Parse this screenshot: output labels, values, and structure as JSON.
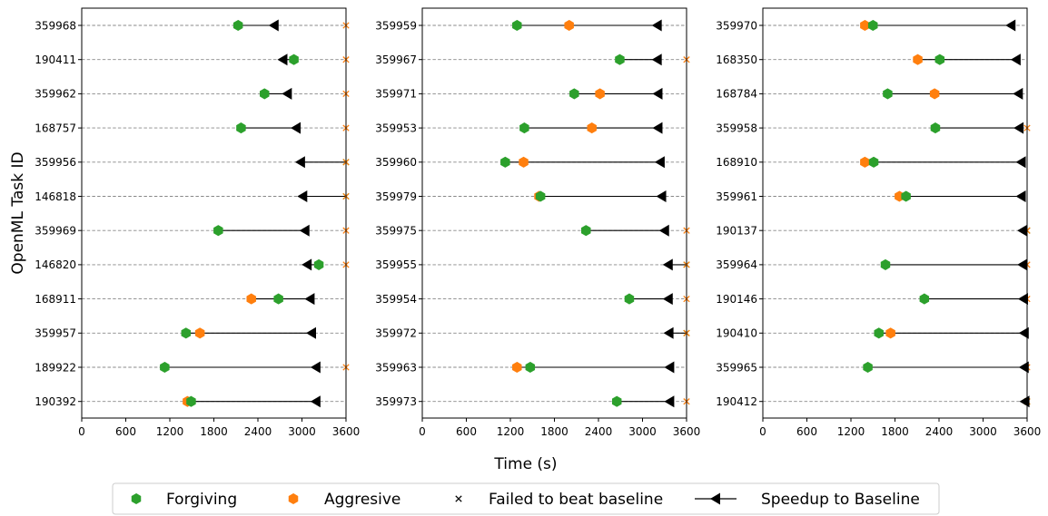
{
  "figure": {
    "ylabel": "OpenML Task ID",
    "xlabel": "Time (s)"
  },
  "legend": {
    "placement": "bottom-center",
    "items": [
      {
        "label": "Forgiving",
        "marker": "hexagon",
        "color": "#2ca02c"
      },
      {
        "label": "Aggresive",
        "marker": "hexagon",
        "color": "#ff7f0e"
      },
      {
        "label": "Failed to beat baseline",
        "marker": "x",
        "color": "#000000"
      },
      {
        "label": "Speedup to Baseline",
        "marker": "line-left-triangle",
        "color": "#000000"
      }
    ]
  },
  "colors": {
    "forgiving": "#2ca02c",
    "aggressive": "#ff7f0e",
    "failed_x": "#ff7f0e",
    "grid": "#888888"
  },
  "chart_data": [
    {
      "type": "dot-arrow",
      "xlim": [
        0,
        3600
      ],
      "xticks": [
        0,
        600,
        1200,
        1800,
        2400,
        3000,
        3600
      ],
      "rows": [
        {
          "task": "359968",
          "forgiving": 2130,
          "aggressive": null,
          "baseline": 2620,
          "forgiving_failed": false,
          "aggressive_failed": true
        },
        {
          "task": "190411",
          "forgiving": 2890,
          "aggressive": null,
          "baseline": 2740,
          "forgiving_failed": false,
          "aggressive_failed": true
        },
        {
          "task": "359962",
          "forgiving": 2490,
          "aggressive": null,
          "baseline": 2800,
          "forgiving_failed": false,
          "aggressive_failed": true
        },
        {
          "task": "168757",
          "forgiving": 2170,
          "aggressive": null,
          "baseline": 2920,
          "forgiving_failed": false,
          "aggressive_failed": true
        },
        {
          "task": "359956",
          "forgiving": null,
          "aggressive": null,
          "baseline": 2980,
          "forgiving_failed": true,
          "aggressive_failed": true
        },
        {
          "task": "146818",
          "forgiving": null,
          "aggressive": null,
          "baseline": 3010,
          "forgiving_failed": true,
          "aggressive_failed": true
        },
        {
          "task": "359969",
          "forgiving": 1860,
          "aggressive": null,
          "baseline": 3040,
          "forgiving_failed": false,
          "aggressive_failed": true
        },
        {
          "task": "146820",
          "forgiving": 3230,
          "aggressive": null,
          "baseline": 3070,
          "forgiving_failed": false,
          "aggressive_failed": true
        },
        {
          "task": "168911",
          "forgiving": 2680,
          "aggressive": 2310,
          "baseline": 3110,
          "forgiving_failed": false,
          "aggressive_failed": false
        },
        {
          "task": "359957",
          "forgiving": 1420,
          "aggressive": 1610,
          "baseline": 3130,
          "forgiving_failed": false,
          "aggressive_failed": false
        },
        {
          "task": "189922",
          "forgiving": 1130,
          "aggressive": null,
          "baseline": 3190,
          "forgiving_failed": false,
          "aggressive_failed": true
        },
        {
          "task": "190392",
          "forgiving": 1490,
          "aggressive": 1440,
          "baseline": 3190,
          "forgiving_failed": false,
          "aggressive_failed": false
        }
      ]
    },
    {
      "type": "dot-arrow",
      "xlim": [
        0,
        3600
      ],
      "xticks": [
        0,
        600,
        1200,
        1800,
        2400,
        3000,
        3600
      ],
      "rows": [
        {
          "task": "359959",
          "forgiving": 1290,
          "aggressive": 2000,
          "baseline": 3200,
          "forgiving_failed": false,
          "aggressive_failed": false
        },
        {
          "task": "359967",
          "forgiving": 2690,
          "aggressive": null,
          "baseline": 3200,
          "forgiving_failed": false,
          "aggressive_failed": true
        },
        {
          "task": "359971",
          "forgiving": 2070,
          "aggressive": 2420,
          "baseline": 3210,
          "forgiving_failed": false,
          "aggressive_failed": false
        },
        {
          "task": "359953",
          "forgiving": 1390,
          "aggressive": 2310,
          "baseline": 3210,
          "forgiving_failed": false,
          "aggressive_failed": false
        },
        {
          "task": "359960",
          "forgiving": 1130,
          "aggressive": 1380,
          "baseline": 3240,
          "forgiving_failed": false,
          "aggressive_failed": false
        },
        {
          "task": "359979",
          "forgiving": 1610,
          "aggressive": 1590,
          "baseline": 3260,
          "forgiving_failed": false,
          "aggressive_failed": false
        },
        {
          "task": "359975",
          "forgiving": 2230,
          "aggressive": null,
          "baseline": 3300,
          "forgiving_failed": false,
          "aggressive_failed": true
        },
        {
          "task": "359955",
          "forgiving": null,
          "aggressive": null,
          "baseline": 3350,
          "forgiving_failed": true,
          "aggressive_failed": true
        },
        {
          "task": "359954",
          "forgiving": 2820,
          "aggressive": null,
          "baseline": 3350,
          "forgiving_failed": false,
          "aggressive_failed": true
        },
        {
          "task": "359972",
          "forgiving": null,
          "aggressive": null,
          "baseline": 3360,
          "forgiving_failed": true,
          "aggressive_failed": true
        },
        {
          "task": "359963",
          "forgiving": 1470,
          "aggressive": 1290,
          "baseline": 3370,
          "forgiving_failed": false,
          "aggressive_failed": false
        },
        {
          "task": "359973",
          "forgiving": 2650,
          "aggressive": null,
          "baseline": 3370,
          "forgiving_failed": false,
          "aggressive_failed": true
        }
      ]
    },
    {
      "type": "dot-arrow",
      "xlim": [
        0,
        3600
      ],
      "xticks": [
        0,
        600,
        1200,
        1800,
        2400,
        3000,
        3600
      ],
      "rows": [
        {
          "task": "359970",
          "forgiving": 1500,
          "aggressive": 1390,
          "baseline": 3380,
          "forgiving_failed": false,
          "aggressive_failed": false
        },
        {
          "task": "168350",
          "forgiving": 2410,
          "aggressive": 2110,
          "baseline": 3450,
          "forgiving_failed": false,
          "aggressive_failed": false
        },
        {
          "task": "168784",
          "forgiving": 1700,
          "aggressive": 2340,
          "baseline": 3480,
          "forgiving_failed": false,
          "aggressive_failed": false
        },
        {
          "task": "359958",
          "forgiving": 2350,
          "aggressive": null,
          "baseline": 3490,
          "forgiving_failed": false,
          "aggressive_failed": true
        },
        {
          "task": "168910",
          "forgiving": 1510,
          "aggressive": 1390,
          "baseline": 3520,
          "forgiving_failed": false,
          "aggressive_failed": false
        },
        {
          "task": "359961",
          "forgiving": 1950,
          "aggressive": 1860,
          "baseline": 3520,
          "forgiving_failed": false,
          "aggressive_failed": false
        },
        {
          "task": "190137",
          "forgiving": null,
          "aggressive": null,
          "baseline": 3540,
          "forgiving_failed": true,
          "aggressive_failed": true
        },
        {
          "task": "359964",
          "forgiving": 1670,
          "aggressive": null,
          "baseline": 3540,
          "forgiving_failed": false,
          "aggressive_failed": true
        },
        {
          "task": "190146",
          "forgiving": 2200,
          "aggressive": null,
          "baseline": 3550,
          "forgiving_failed": false,
          "aggressive_failed": true
        },
        {
          "task": "190410",
          "forgiving": 1580,
          "aggressive": 1740,
          "baseline": 3560,
          "forgiving_failed": false,
          "aggressive_failed": false
        },
        {
          "task": "359965",
          "forgiving": 1430,
          "aggressive": null,
          "baseline": 3560,
          "forgiving_failed": false,
          "aggressive_failed": true
        },
        {
          "task": "190412",
          "forgiving": null,
          "aggressive": null,
          "baseline": 3570,
          "forgiving_failed": true,
          "aggressive_failed": true
        }
      ]
    }
  ]
}
